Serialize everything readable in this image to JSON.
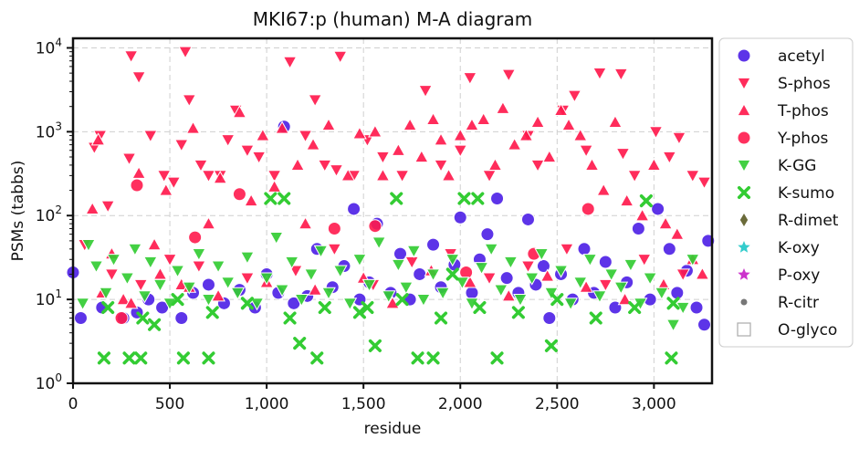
{
  "chart_data": {
    "type": "scatter",
    "title": "MKI67:p (human) M-A diagram",
    "xlabel": "residue",
    "ylabel": "PSMs (tabbs)",
    "x_range": [
      0,
      3300
    ],
    "y_range": [
      1,
      13000
    ],
    "y_scale": "log",
    "grid": true,
    "legend_position": "outside-right",
    "x_ticks": [
      0,
      500,
      1000,
      1500,
      2000,
      2500,
      3000
    ],
    "x_tick_labels": [
      "0",
      "500",
      "1,000",
      "1,500",
      "2,000",
      "2,500",
      "3,000"
    ],
    "y_ticks": [
      1,
      10,
      100,
      1000,
      10000
    ],
    "y_tick_labels": [
      "10^0",
      "10^1",
      "10^2",
      "10^3",
      "10^4"
    ],
    "series": [
      {
        "name": "acetyl",
        "marker": "circle",
        "color": "#4b1ee6",
        "points": [
          [
            0,
            21
          ],
          [
            40,
            6
          ],
          [
            150,
            8
          ],
          [
            260,
            6
          ],
          [
            330,
            7
          ],
          [
            390,
            10
          ],
          [
            460,
            8
          ],
          [
            560,
            6
          ],
          [
            620,
            12
          ],
          [
            700,
            15
          ],
          [
            780,
            9
          ],
          [
            860,
            13
          ],
          [
            940,
            8
          ],
          [
            1000,
            20
          ],
          [
            1060,
            12
          ],
          [
            1090,
            1150
          ],
          [
            1140,
            9
          ],
          [
            1210,
            11
          ],
          [
            1260,
            40
          ],
          [
            1340,
            14
          ],
          [
            1400,
            25
          ],
          [
            1450,
            120
          ],
          [
            1480,
            10
          ],
          [
            1530,
            16
          ],
          [
            1570,
            80
          ],
          [
            1640,
            12
          ],
          [
            1690,
            35
          ],
          [
            1740,
            10
          ],
          [
            1790,
            20
          ],
          [
            1860,
            45
          ],
          [
            1900,
            14
          ],
          [
            1970,
            26
          ],
          [
            2000,
            95
          ],
          [
            2060,
            12
          ],
          [
            2100,
            30
          ],
          [
            2140,
            60
          ],
          [
            2190,
            160
          ],
          [
            2240,
            18
          ],
          [
            2300,
            12
          ],
          [
            2350,
            90
          ],
          [
            2390,
            15
          ],
          [
            2430,
            25
          ],
          [
            2460,
            6
          ],
          [
            2520,
            20
          ],
          [
            2580,
            10
          ],
          [
            2640,
            40
          ],
          [
            2690,
            12
          ],
          [
            2750,
            28
          ],
          [
            2800,
            8
          ],
          [
            2860,
            16
          ],
          [
            2920,
            70
          ],
          [
            2980,
            10
          ],
          [
            3020,
            120
          ],
          [
            3080,
            40
          ],
          [
            3120,
            12
          ],
          [
            3170,
            22
          ],
          [
            3220,
            8
          ],
          [
            3260,
            5
          ],
          [
            3280,
            50
          ]
        ]
      },
      {
        "name": "S-phos",
        "marker": "triangle-down",
        "color": "#ff1a4d",
        "points": [
          [
            110,
            650
          ],
          [
            140,
            900
          ],
          [
            180,
            130
          ],
          [
            290,
            480
          ],
          [
            300,
            8000
          ],
          [
            340,
            4500
          ],
          [
            400,
            900
          ],
          [
            470,
            300
          ],
          [
            520,
            250
          ],
          [
            560,
            700
          ],
          [
            580,
            9000
          ],
          [
            600,
            2400
          ],
          [
            660,
            400
          ],
          [
            700,
            300
          ],
          [
            760,
            300
          ],
          [
            800,
            800
          ],
          [
            840,
            1800
          ],
          [
            900,
            600
          ],
          [
            960,
            500
          ],
          [
            1040,
            300
          ],
          [
            1120,
            6800
          ],
          [
            1200,
            900
          ],
          [
            1250,
            2400
          ],
          [
            1300,
            400
          ],
          [
            1360,
            350
          ],
          [
            1380,
            7900
          ],
          [
            1450,
            300
          ],
          [
            1520,
            800
          ],
          [
            1600,
            500
          ],
          [
            1700,
            300
          ],
          [
            1820,
            3100
          ],
          [
            1900,
            400
          ],
          [
            2000,
            600
          ],
          [
            2050,
            4400
          ],
          [
            2150,
            300
          ],
          [
            2250,
            4800
          ],
          [
            2350,
            900
          ],
          [
            2400,
            400
          ],
          [
            2530,
            1800
          ],
          [
            2590,
            2700
          ],
          [
            2650,
            600
          ],
          [
            2720,
            5000
          ],
          [
            2830,
            4900
          ],
          [
            2840,
            550
          ],
          [
            2900,
            300
          ],
          [
            3010,
            1000
          ],
          [
            3080,
            500
          ],
          [
            3130,
            850
          ],
          [
            3200,
            300
          ],
          [
            3260,
            250
          ],
          [
            60,
            45
          ],
          [
            200,
            20
          ],
          [
            350,
            15
          ],
          [
            500,
            30
          ],
          [
            650,
            25
          ],
          [
            900,
            18
          ],
          [
            1150,
            22
          ],
          [
            1350,
            40
          ],
          [
            1550,
            15
          ],
          [
            1750,
            28
          ],
          [
            1950,
            35
          ],
          [
            2150,
            18
          ],
          [
            2350,
            25
          ],
          [
            2550,
            40
          ],
          [
            2750,
            15
          ],
          [
            2950,
            30
          ],
          [
            3150,
            20
          ]
        ]
      },
      {
        "name": "T-phos",
        "marker": "triangle-up",
        "color": "#ff1a4d",
        "points": [
          [
            100,
            120
          ],
          [
            130,
            800
          ],
          [
            200,
            35
          ],
          [
            260,
            10
          ],
          [
            340,
            320
          ],
          [
            420,
            45
          ],
          [
            480,
            200
          ],
          [
            560,
            15
          ],
          [
            620,
            1100
          ],
          [
            700,
            80
          ],
          [
            760,
            280
          ],
          [
            860,
            1700
          ],
          [
            920,
            150
          ],
          [
            980,
            900
          ],
          [
            1040,
            220
          ],
          [
            1080,
            1100
          ],
          [
            1160,
            400
          ],
          [
            1200,
            80
          ],
          [
            1240,
            700
          ],
          [
            1320,
            1200
          ],
          [
            1420,
            300
          ],
          [
            1480,
            950
          ],
          [
            1560,
            1000
          ],
          [
            1600,
            300
          ],
          [
            1680,
            600
          ],
          [
            1740,
            1200
          ],
          [
            1800,
            500
          ],
          [
            1860,
            1400
          ],
          [
            1900,
            800
          ],
          [
            1940,
            300
          ],
          [
            2000,
            900
          ],
          [
            2060,
            1200
          ],
          [
            2120,
            1400
          ],
          [
            2180,
            400
          ],
          [
            2220,
            1900
          ],
          [
            2280,
            700
          ],
          [
            2340,
            900
          ],
          [
            2400,
            1300
          ],
          [
            2460,
            500
          ],
          [
            2520,
            1800
          ],
          [
            2560,
            1200
          ],
          [
            2620,
            900
          ],
          [
            2680,
            400
          ],
          [
            2740,
            200
          ],
          [
            2800,
            1300
          ],
          [
            2860,
            150
          ],
          [
            2940,
            100
          ],
          [
            3000,
            400
          ],
          [
            3060,
            80
          ],
          [
            3120,
            60
          ],
          [
            3200,
            30
          ],
          [
            3250,
            20
          ],
          [
            150,
            12
          ],
          [
            300,
            9
          ],
          [
            450,
            20
          ],
          [
            600,
            14
          ],
          [
            750,
            11
          ],
          [
            1000,
            16
          ],
          [
            1250,
            13
          ],
          [
            1500,
            18
          ],
          [
            1650,
            9
          ],
          [
            1850,
            22
          ],
          [
            2050,
            16
          ],
          [
            2250,
            11
          ],
          [
            2450,
            19
          ],
          [
            2650,
            14
          ],
          [
            2850,
            10
          ],
          [
            3050,
            15
          ]
        ]
      },
      {
        "name": "Y-phos",
        "marker": "circle",
        "color": "#ff1a4d",
        "points": [
          [
            250,
            6
          ],
          [
            330,
            230
          ],
          [
            630,
            55
          ],
          [
            860,
            180
          ],
          [
            1350,
            70
          ],
          [
            1560,
            75
          ],
          [
            2030,
            21
          ],
          [
            2380,
            35
          ],
          [
            2660,
            120
          ]
        ]
      },
      {
        "name": "K-GG",
        "marker": "triangle-down",
        "color": "#33cc33",
        "points": [
          [
            50,
            9
          ],
          [
            80,
            45
          ],
          [
            120,
            25
          ],
          [
            170,
            12
          ],
          [
            210,
            30
          ],
          [
            280,
            18
          ],
          [
            320,
            40
          ],
          [
            370,
            11
          ],
          [
            400,
            28
          ],
          [
            450,
            15
          ],
          [
            500,
            9
          ],
          [
            540,
            22
          ],
          [
            600,
            14
          ],
          [
            650,
            35
          ],
          [
            700,
            10
          ],
          [
            750,
            25
          ],
          [
            800,
            16
          ],
          [
            850,
            12
          ],
          [
            900,
            32
          ],
          [
            950,
            9
          ],
          [
            1000,
            18
          ],
          [
            1050,
            55
          ],
          [
            1080,
            13
          ],
          [
            1130,
            28
          ],
          [
            1180,
            10
          ],
          [
            1230,
            20
          ],
          [
            1280,
            38
          ],
          [
            1320,
            12
          ],
          [
            1380,
            22
          ],
          [
            1430,
            9
          ],
          [
            1480,
            30
          ],
          [
            1530,
            15
          ],
          [
            1580,
            48
          ],
          [
            1630,
            11
          ],
          [
            1680,
            26
          ],
          [
            1720,
            14
          ],
          [
            1760,
            38
          ],
          [
            1810,
            10
          ],
          [
            1860,
            20
          ],
          [
            1910,
            12
          ],
          [
            1960,
            30
          ],
          [
            2010,
            16
          ],
          [
            2060,
            9
          ],
          [
            2110,
            24
          ],
          [
            2160,
            40
          ],
          [
            2210,
            13
          ],
          [
            2260,
            28
          ],
          [
            2310,
            10
          ],
          [
            2370,
            18
          ],
          [
            2420,
            35
          ],
          [
            2470,
            12
          ],
          [
            2520,
            22
          ],
          [
            2570,
            9
          ],
          [
            2620,
            16
          ],
          [
            2670,
            30
          ],
          [
            2720,
            11
          ],
          [
            2780,
            20
          ],
          [
            2830,
            14
          ],
          [
            2880,
            26
          ],
          [
            2930,
            9
          ],
          [
            2980,
            18
          ],
          [
            3040,
            12
          ],
          [
            3100,
            5
          ],
          [
            3150,
            8
          ],
          [
            3200,
            30
          ]
        ]
      },
      {
        "name": "K-sumo",
        "marker": "x",
        "color": "#33cc33",
        "points": [
          [
            160,
            2
          ],
          [
            290,
            2
          ],
          [
            350,
            2
          ],
          [
            420,
            5
          ],
          [
            570,
            2
          ],
          [
            700,
            2
          ],
          [
            1020,
            160
          ],
          [
            1090,
            160
          ],
          [
            1170,
            3
          ],
          [
            1260,
            2
          ],
          [
            1520,
            8
          ],
          [
            1560,
            2.8
          ],
          [
            1670,
            160
          ],
          [
            1780,
            2
          ],
          [
            1860,
            2
          ],
          [
            1960,
            20
          ],
          [
            2020,
            160
          ],
          [
            2090,
            160
          ],
          [
            2190,
            2
          ],
          [
            2470,
            2.8
          ],
          [
            2960,
            150
          ],
          [
            3090,
            2
          ],
          [
            180,
            8
          ],
          [
            360,
            6
          ],
          [
            540,
            10
          ],
          [
            720,
            7
          ],
          [
            900,
            9
          ],
          [
            1120,
            6
          ],
          [
            1300,
            8
          ],
          [
            1480,
            7
          ],
          [
            1700,
            10
          ],
          [
            1900,
            6
          ],
          [
            2100,
            8
          ],
          [
            2300,
            7
          ],
          [
            2500,
            10
          ],
          [
            2700,
            6
          ],
          [
            2900,
            8
          ],
          [
            3100,
            9
          ]
        ]
      },
      {
        "name": "R-dimet",
        "marker": "diamond",
        "color": "#6b6b3a",
        "points": []
      },
      {
        "name": "K-oxy",
        "marker": "star",
        "color": "#33cccc",
        "points": []
      },
      {
        "name": "P-oxy",
        "marker": "star",
        "color": "#cc33cc",
        "points": []
      },
      {
        "name": "R-citr",
        "marker": "dot",
        "color": "#777777",
        "points": []
      },
      {
        "name": "O-glyco",
        "marker": "square-open",
        "color": "#aaaaaa",
        "points": []
      }
    ]
  }
}
